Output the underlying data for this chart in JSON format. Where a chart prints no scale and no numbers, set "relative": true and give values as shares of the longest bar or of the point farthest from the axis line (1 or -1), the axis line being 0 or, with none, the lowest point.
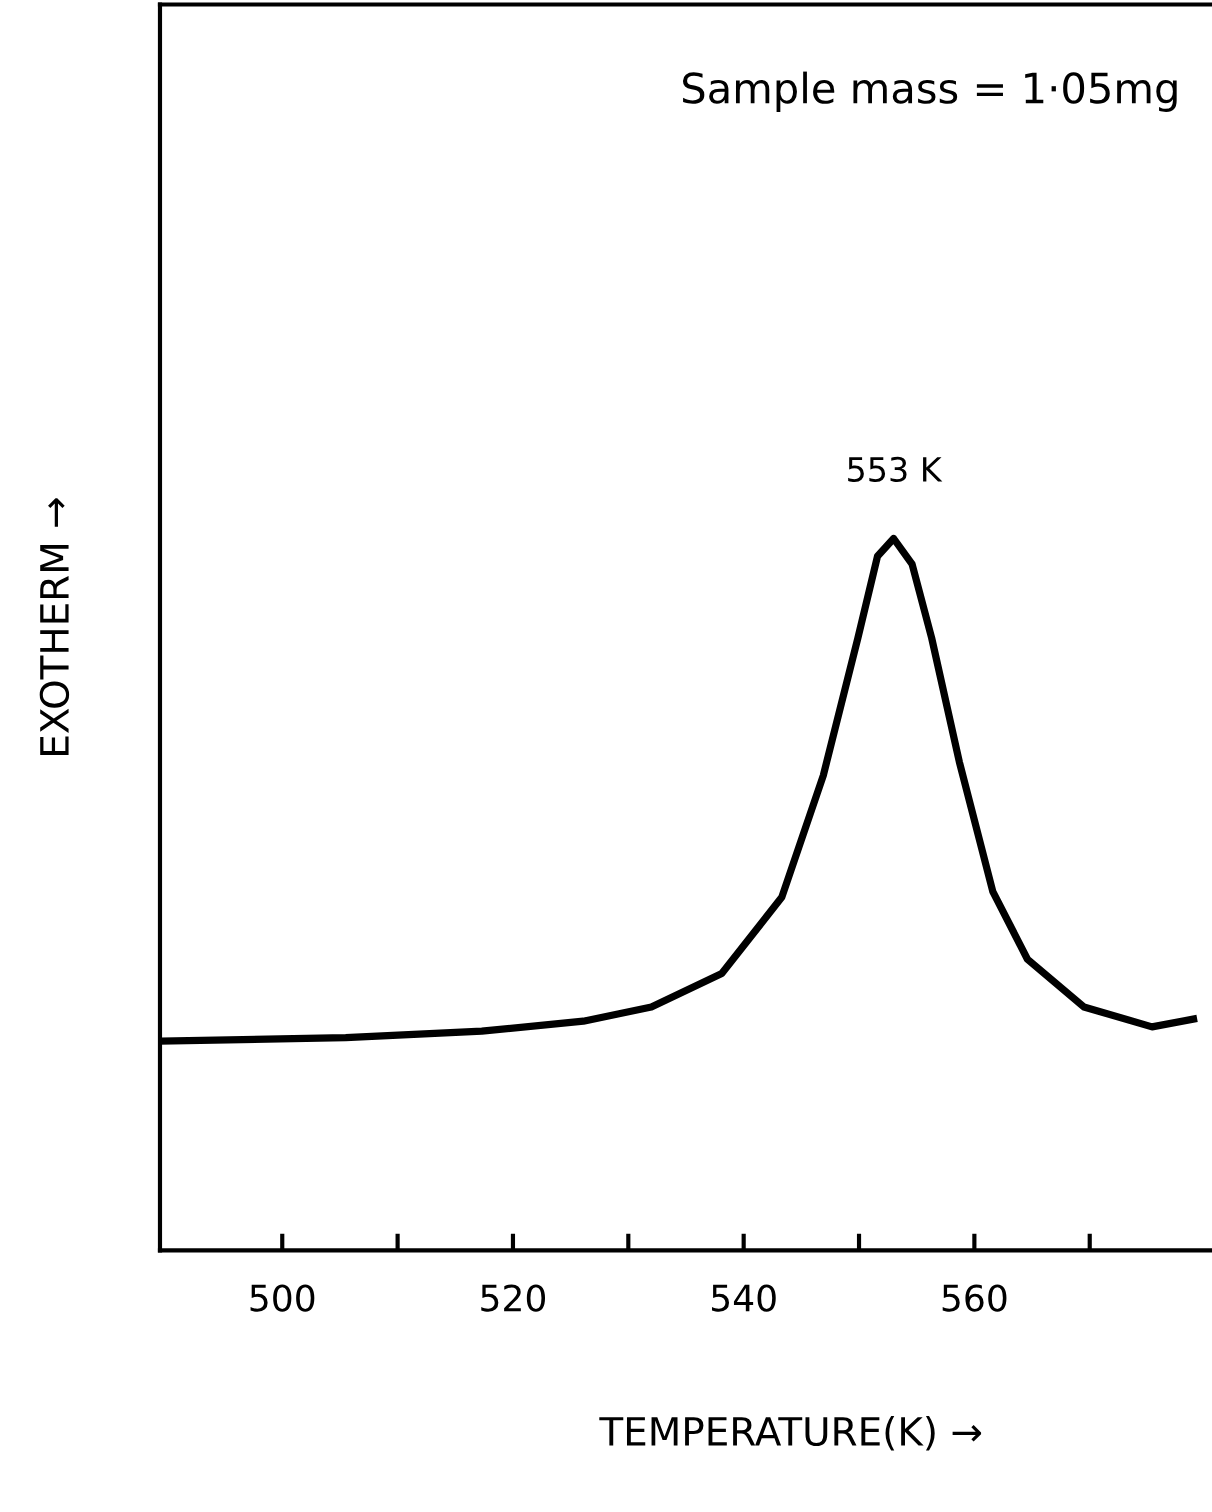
{
  "chart_data": {
    "type": "line",
    "relative": true,
    "xlabel": "TEMPERATURE(K) →",
    "ylabel": "EXOTHERM →",
    "x": [
      489.5,
      505.5,
      517.3,
      526.1,
      532.0,
      538.1,
      543.3,
      546.9,
      549.9,
      551.6,
      553.0,
      554.6,
      556.3,
      558.7,
      561.6,
      564.6,
      569.5,
      575.4,
      579.0
    ],
    "series": [
      {
        "color": "#000000",
        "values": [
          0.294,
          0.299,
          0.308,
          0.322,
          0.342,
          0.389,
          0.496,
          0.667,
          0.86,
          0.975,
          1.0,
          0.964,
          0.86,
          0.686,
          0.504,
          0.409,
          0.342,
          0.314,
          0.325
        ]
      }
    ],
    "xlim": [
      489.4,
      580.6
    ],
    "xticks": [
      500,
      {
        "value": 510,
        "label": null
      },
      520,
      {
        "value": 530,
        "label": null
      },
      540,
      {
        "value": 550,
        "label": null
      },
      560,
      {
        "value": 570,
        "label": null
      }
    ],
    "annotations": [
      "Sample mass = 1·05mg",
      {
        "text": "553 K",
        "x": 553.0,
        "y": 1.0
      }
    ],
    "grid": false,
    "legend": false,
    "marker": "none",
    "line_style": "solid"
  }
}
